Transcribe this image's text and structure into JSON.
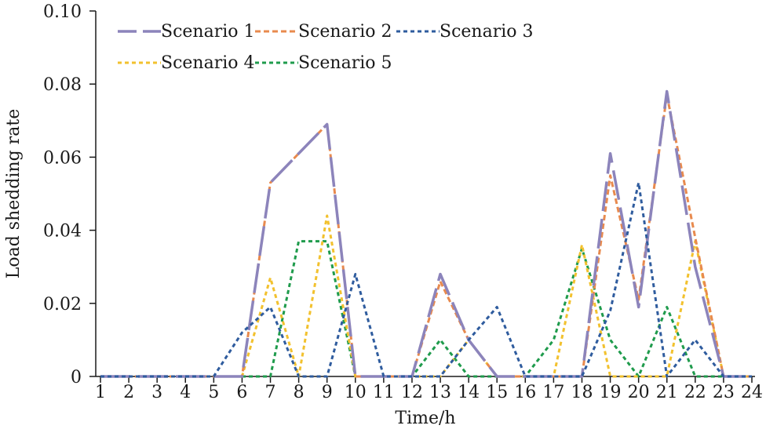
{
  "chart_data": {
    "type": "line",
    "title": "",
    "xlabel": "Time/h",
    "ylabel": "Load shedding rate",
    "x": [
      1,
      2,
      3,
      4,
      5,
      6,
      7,
      8,
      9,
      10,
      11,
      12,
      13,
      14,
      15,
      16,
      17,
      18,
      19,
      20,
      21,
      22,
      23,
      24
    ],
    "xlim": [
      1,
      24
    ],
    "ylim": [
      0,
      0.1
    ],
    "yticks": [
      0,
      0.02,
      0.04,
      0.06,
      0.08,
      0.1
    ],
    "ytick_labels": [
      "0",
      "0.02",
      "0.04",
      "0.06",
      "0.08",
      "0.10"
    ],
    "grid": false,
    "legend_position": "top-left",
    "series": [
      {
        "name": "Scenario 1",
        "color": "#8c84bb",
        "style": "long-dash",
        "values": [
          0,
          0,
          0,
          0,
          0,
          0,
          0.053,
          0.061,
          0.069,
          0,
          0,
          0,
          0.028,
          0.01,
          0,
          0,
          0,
          0,
          0.061,
          0.019,
          0.078,
          0.03,
          0,
          0
        ]
      },
      {
        "name": "Scenario 2",
        "color": "#e88a4e",
        "style": "dash",
        "values": [
          0,
          0,
          0,
          0,
          0,
          0,
          0.053,
          0.061,
          0.069,
          0,
          0,
          0,
          0.026,
          0.01,
          0,
          0,
          0,
          0,
          0.055,
          0.021,
          0.077,
          0.038,
          0,
          0
        ]
      },
      {
        "name": "Scenario 3",
        "color": "#2f5c9e",
        "style": "dot",
        "values": [
          0,
          0,
          0,
          0,
          0,
          0.012,
          0.019,
          0,
          0,
          0.028,
          0,
          0,
          0,
          0.01,
          0.019,
          0,
          0,
          0,
          0.018,
          0.053,
          0,
          0.01,
          0,
          0
        ]
      },
      {
        "name": "Scenario 4",
        "color": "#f2c12e",
        "style": "dot",
        "values": [
          0,
          0,
          0,
          0,
          0,
          0,
          0.027,
          0,
          0.044,
          0,
          0,
          0,
          0,
          0.01,
          0,
          0,
          0,
          0.036,
          0,
          0,
          0,
          0.037,
          0,
          0
        ]
      },
      {
        "name": "Scenario 5",
        "color": "#1f9b4c",
        "style": "dot",
        "values": [
          0,
          0,
          0,
          0,
          0,
          0,
          0,
          0.037,
          0.037,
          0,
          0,
          0,
          0.01,
          0,
          0,
          0,
          0.01,
          0.035,
          0.01,
          0,
          0.019,
          0,
          0,
          0
        ]
      }
    ]
  }
}
